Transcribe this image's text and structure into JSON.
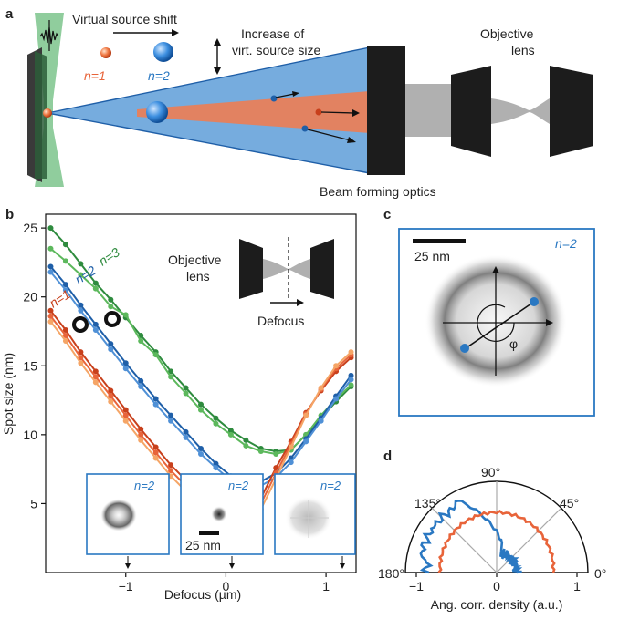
{
  "panel_a": {
    "label": "a",
    "virtual_source_shift": "Virtual source shift",
    "increase_line1": "Increase of",
    "increase_line2": "virt. source size",
    "objective_line1": "Objective",
    "objective_line2": "lens",
    "beam_forming": "Beam forming optics",
    "n1_label": "n=1",
    "n2_label": "n=2",
    "colors": {
      "n1": "#e8643a",
      "n2": "#2a78c2",
      "cone": "#6fa8dc",
      "laser": "#7cc48c",
      "lens": "#222222",
      "gray": "#b0b0b0"
    }
  },
  "panel_b": {
    "label": "b",
    "inset_objective_line1": "Objective",
    "inset_objective_line2": "lens",
    "inset_defocus": "Defocus",
    "inset_scalebar": "25 nm",
    "thumb_label": "n=2",
    "chart_data": {
      "type": "line",
      "xlabel": "Defocus (µm)",
      "ylabel": "Spot size (nm)",
      "xlim": [
        -1.8,
        1.3
      ],
      "ylim": [
        0,
        26
      ],
      "xticks": [
        -1,
        0,
        1
      ],
      "xtick_labels": [
        "−1",
        "0",
        "1"
      ],
      "yticks": [
        5,
        10,
        15,
        20,
        25
      ],
      "ytick_labels": [
        "5",
        "10",
        "15",
        "20",
        "25"
      ],
      "series": [
        {
          "name": "n=3",
          "color": "#2e8b3e",
          "x": [
            -1.75,
            -1.6,
            -1.45,
            -1.3,
            -1.15,
            -1.0,
            -0.85,
            -0.7,
            -0.55,
            -0.4,
            -0.25,
            -0.1,
            0.05,
            0.2,
            0.35,
            0.5,
            0.65,
            0.8,
            0.95,
            1.1,
            1.25
          ],
          "y": [
            25,
            23.8,
            22.4,
            21.0,
            19.8,
            18.5,
            17.2,
            16.0,
            14.6,
            13.4,
            12.2,
            11.2,
            10.3,
            9.6,
            9.0,
            8.8,
            8.9,
            10.0,
            11.2,
            12.4,
            13.5
          ]
        },
        {
          "name": "",
          "color": "#5cb85c",
          "x": [
            -1.75,
            -1.6,
            -1.45,
            -1.3,
            -1.15,
            -1.0,
            -0.85,
            -0.7,
            -0.55,
            -0.4,
            -0.25,
            -0.1,
            0.05,
            0.2,
            0.35,
            0.5,
            0.65,
            0.8,
            0.95,
            1.1,
            1.25
          ],
          "y": [
            23.5,
            22.6,
            21.6,
            20.6,
            19.3,
            18.7,
            16.8,
            15.8,
            14.2,
            13.0,
            11.8,
            10.8,
            10.0,
            9.2,
            8.8,
            8.6,
            8.9,
            10.0,
            11.4,
            12.6,
            13.6
          ]
        },
        {
          "name": "n=2",
          "color": "#1f5fa8",
          "x": [
            -1.75,
            -1.6,
            -1.45,
            -1.3,
            -1.15,
            -1.0,
            -0.85,
            -0.7,
            -0.55,
            -0.4,
            -0.25,
            -0.1,
            0.05,
            0.2,
            0.35,
            0.5,
            0.65,
            0.8,
            0.95,
            1.1,
            1.25
          ],
          "y": [
            22.2,
            20.9,
            19.4,
            18.0,
            16.6,
            15.2,
            13.9,
            12.6,
            11.4,
            10.2,
            9.0,
            7.9,
            7.0,
            6.5,
            6.6,
            7.2,
            8.3,
            9.7,
            11.2,
            12.8,
            14.3
          ]
        },
        {
          "name": "",
          "color": "#4f90d6",
          "x": [
            -1.75,
            -1.6,
            -1.45,
            -1.3,
            -1.15,
            -1.0,
            -0.85,
            -0.7,
            -0.55,
            -0.4,
            -0.25,
            -0.1,
            0.05,
            0.2,
            0.35,
            0.5,
            0.65,
            0.8,
            0.95,
            1.1,
            1.25
          ],
          "y": [
            21.8,
            20.5,
            19.0,
            17.6,
            16.2,
            14.8,
            13.5,
            12.2,
            11.0,
            9.8,
            8.6,
            7.6,
            6.7,
            6.2,
            6.3,
            6.9,
            8.0,
            9.5,
            11.0,
            12.6,
            14.0
          ]
        },
        {
          "name": "n=1",
          "color": "#c8401c",
          "x": [
            -1.75,
            -1.6,
            -1.45,
            -1.3,
            -1.15,
            -1.0,
            -0.85,
            -0.7,
            -0.55,
            -0.4,
            -0.25,
            -0.1,
            0.05,
            0.2,
            0.35,
            0.5,
            0.65,
            0.8,
            0.95,
            1.1,
            1.25
          ],
          "y": [
            19.0,
            17.6,
            16.0,
            14.6,
            13.2,
            11.8,
            10.4,
            9.1,
            7.8,
            6.7,
            5.6,
            4.7,
            4.3,
            4.4,
            5.4,
            7.6,
            9.5,
            11.6,
            13.2,
            14.6,
            15.6
          ]
        },
        {
          "name": "",
          "color": "#e8643a",
          "x": [
            -1.75,
            -1.6,
            -1.45,
            -1.3,
            -1.15,
            -1.0,
            -0.85,
            -0.7,
            -0.55,
            -0.4,
            -0.25,
            -0.1,
            0.05,
            0.2,
            0.35,
            0.5,
            0.65,
            0.8,
            0.95,
            1.1,
            1.25
          ],
          "y": [
            18.6,
            17.2,
            15.6,
            14.2,
            12.8,
            11.4,
            10.0,
            8.7,
            7.4,
            6.3,
            5.2,
            4.3,
            3.9,
            4.0,
            5.0,
            7.2,
            9.3,
            11.5,
            13.3,
            14.8,
            15.8
          ]
        },
        {
          "name": "",
          "color": "#f5a566",
          "x": [
            -1.75,
            -1.6,
            -1.45,
            -1.3,
            -1.15,
            -1.0,
            -0.85,
            -0.7,
            -0.55,
            -0.4,
            -0.25,
            -0.1,
            0.05,
            0.2,
            0.35,
            0.5,
            0.65,
            0.8,
            0.95,
            1.1,
            1.25
          ],
          "y": [
            18.2,
            16.8,
            15.2,
            13.8,
            12.4,
            11.0,
            9.6,
            8.3,
            7.0,
            5.9,
            4.8,
            3.9,
            3.4,
            3.6,
            4.6,
            6.8,
            9.1,
            11.4,
            13.4,
            15.0,
            16.0
          ]
        }
      ],
      "series_labels": [
        "n=3",
        "n=2",
        "n=1"
      ]
    }
  },
  "panel_c": {
    "label": "c",
    "scalebar": "25 nm",
    "n_label": "n=2",
    "phi": "φ"
  },
  "panel_d": {
    "label": "d",
    "chart_data": {
      "type": "polar",
      "xlabel": "Ang. corr. density (a.u.)",
      "angle_labels": [
        "0°",
        "45°",
        "90°",
        "135°",
        "180°"
      ],
      "xticks": [
        -1,
        0,
        1
      ],
      "xtick_labels": [
        "−1",
        "0",
        "1"
      ],
      "series": [
        {
          "name": "",
          "color": "#2a78c2"
        },
        {
          "name": "",
          "color": "#e8643a"
        }
      ]
    }
  }
}
